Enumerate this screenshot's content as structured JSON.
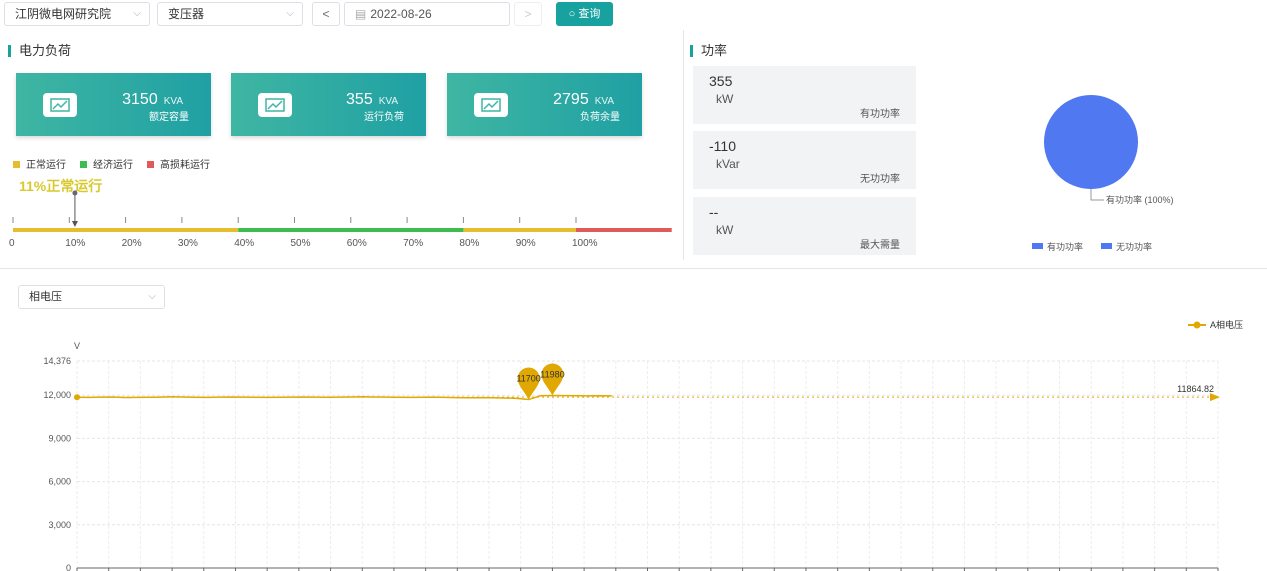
{
  "toolbar": {
    "org": "江阴微电网研究院",
    "device": "变压器",
    "prev": "<",
    "date": "2022-08-26",
    "next": ">",
    "query": "查询"
  },
  "load": {
    "title": "电力负荷",
    "cards": [
      {
        "value": "3150",
        "unit": "KVA",
        "label": "额定容量"
      },
      {
        "value": "355",
        "unit": "KVA",
        "label": "运行负荷"
      },
      {
        "value": "2795",
        "unit": "KVA",
        "label": "负荷余量"
      }
    ],
    "legend": [
      {
        "label": "正常运行",
        "color": "#e6bd2e"
      },
      {
        "label": "经济运行",
        "color": "#3dbd4f"
      },
      {
        "label": "高损耗运行",
        "color": "#e05a5a"
      }
    ],
    "status": "11%正常运行",
    "status_percent": 11,
    "scale": [
      "0",
      "10%",
      "20%",
      "30%",
      "40%",
      "50%",
      "60%",
      "70%",
      "80%",
      "90%",
      "100%"
    ]
  },
  "power": {
    "title": "功率",
    "boxes": [
      {
        "value": "355",
        "unit": "kW",
        "label": "有功功率"
      },
      {
        "value": "-110",
        "unit": "kVar",
        "label": "无功功率"
      },
      {
        "value": "--",
        "unit": "kW",
        "label": "最大需量"
      }
    ],
    "pie": {
      "slice_label": "有功功率 (100%)",
      "legend": [
        {
          "label": "有功功率",
          "color": "#5078f0"
        },
        {
          "label": "无功功率",
          "color": "#5078f0"
        }
      ]
    }
  },
  "voltage": {
    "selector": "相电压",
    "chart_data": {
      "type": "line",
      "ylabel": "V",
      "ylim": [
        0,
        14376
      ],
      "yticks": [
        "0",
        "3,000",
        "6,000",
        "9,000",
        "12,000",
        "14,376"
      ],
      "series": [
        {
          "name": "A相电压",
          "color": "#e0a800",
          "values": [
            11860,
            11850,
            11870,
            11880,
            11840,
            11850,
            11860,
            11870,
            11890,
            11880,
            11860,
            11850,
            11870,
            11880,
            11870,
            11860,
            11850,
            11860,
            11870,
            11880,
            11870,
            11860,
            11870,
            11880,
            11890,
            11880,
            11870,
            11860,
            11850,
            11860,
            11870,
            11850,
            11830,
            11820,
            11830,
            11820,
            11810,
            11780,
            11700,
            11960,
            11980,
            11970,
            11960,
            11950,
            11960,
            11950
          ]
        }
      ],
      "total_points": 97,
      "mark_points": [
        {
          "label": "11700",
          "index": 38
        },
        {
          "label": "11980",
          "index": 40
        }
      ],
      "mark_line": {
        "label": "11864.82",
        "value": 11864.82
      }
    }
  }
}
